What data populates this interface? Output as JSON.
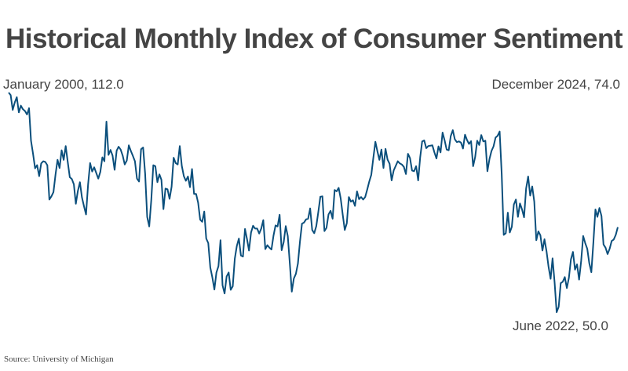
{
  "chart_data": {
    "type": "line",
    "title": "Historical Monthly Index of Consumer Sentiment",
    "source": "Source: University of Michigan",
    "x_start": "January 2000",
    "x_end": "December 2024",
    "frequency": "monthly",
    "grid": false,
    "line_color": "#0b4f7c",
    "annotations": {
      "start": "January 2000, 112.0",
      "end": "December 2024, 74.0",
      "min": "June 2022, 50.0"
    },
    "series": [
      {
        "values": [
          112.0,
          111.3,
          107.1,
          109.2,
          110.7,
          106.4,
          108.3,
          107.3,
          106.8,
          105.8,
          107.6,
          98.4,
          94.7,
          90.6,
          91.5,
          88.4,
          92.0,
          92.6,
          92.4,
          91.5,
          81.8,
          82.7,
          83.9,
          88.8,
          93.0,
          90.7,
          95.7,
          93.0,
          96.9,
          92.4,
          88.1,
          87.6,
          86.1,
          80.6,
          84.2,
          86.7,
          82.4,
          79.9,
          77.6,
          86.0,
          92.1,
          89.7,
          90.9,
          89.3,
          87.7,
          89.6,
          93.7,
          92.6,
          103.8,
          94.4,
          95.8,
          94.2,
          90.2,
          95.6,
          96.7,
          95.9,
          94.2,
          91.7,
          92.8,
          97.1,
          95.5,
          94.1,
          92.6,
          87.7,
          86.9,
          96.0,
          96.5,
          89.1,
          76.9,
          74.2,
          81.6,
          91.5,
          91.2,
          86.7,
          88.9,
          87.4,
          79.1,
          84.9,
          84.7,
          82.0,
          85.4,
          93.6,
          92.1,
          91.7,
          96.9,
          91.3,
          88.4,
          87.1,
          88.3,
          85.3,
          90.4,
          83.4,
          83.4,
          80.9,
          76.1,
          75.5,
          78.4,
          70.8,
          69.5,
          62.6,
          59.8,
          56.4,
          61.2,
          63.0,
          70.3,
          57.6,
          55.3,
          60.1,
          61.2,
          56.3,
          57.3,
          65.1,
          68.7,
          70.8,
          66.0,
          65.7,
          73.5,
          70.6,
          67.4,
          72.5,
          74.4,
          73.6,
          73.6,
          72.2,
          73.6,
          76.0,
          67.8,
          68.9,
          68.2,
          67.7,
          71.6,
          74.5,
          74.2,
          77.5,
          67.5,
          69.8,
          74.3,
          71.5,
          63.7,
          55.8,
          59.5,
          60.8,
          63.7,
          69.9,
          75.0,
          75.3,
          76.2,
          76.4,
          79.3,
          73.2,
          72.3,
          74.3,
          78.3,
          82.6,
          82.7,
          72.9,
          73.8,
          77.6,
          78.6,
          76.4,
          84.5,
          84.1,
          85.1,
          82.1,
          77.5,
          73.2,
          75.1,
          82.5,
          81.2,
          81.6,
          80.0,
          84.1,
          81.9,
          82.5,
          81.8,
          82.5,
          84.6,
          86.9,
          88.8,
          93.6,
          98.1,
          95.4,
          93.0,
          95.9,
          90.7,
          96.1,
          93.1,
          91.9,
          87.2,
          90.0,
          91.3,
          92.6,
          92.0,
          91.7,
          91.0,
          89.0,
          94.7,
          93.5,
          90.0,
          89.8,
          91.2,
          87.2,
          93.8,
          98.2,
          98.5,
          96.3,
          96.9,
          97.0,
          97.1,
          95.1,
          93.4,
          96.8,
          95.1,
          100.7,
          98.5,
          95.9,
          95.7,
          99.7,
          101.4,
          98.8,
          98.0,
          98.2,
          97.9,
          96.2,
          100.1,
          98.6,
          97.5,
          98.3,
          91.2,
          93.8,
          98.4,
          97.2,
          100.0,
          98.2,
          98.4,
          89.8,
          93.2,
          95.5,
          96.8,
          99.3,
          99.8,
          101.0,
          89.1,
          71.8,
          72.3,
          78.1,
          72.5,
          74.1,
          80.4,
          81.8,
          76.9,
          80.7,
          79.0,
          76.8,
          84.9,
          88.3,
          82.9,
          85.5,
          81.2,
          70.3,
          72.8,
          71.7,
          67.4,
          70.6,
          67.2,
          62.8,
          59.4,
          65.2,
          58.4,
          50.0,
          51.5,
          58.2,
          58.6,
          59.9,
          56.8,
          59.7,
          64.9,
          67.0,
          62.0,
          63.5,
          59.2,
          64.4,
          71.5,
          69.5,
          67.9,
          63.8,
          61.3,
          69.7,
          79.0,
          76.9,
          79.4,
          77.2,
          69.1,
          68.2,
          66.4,
          67.9,
          70.1,
          70.5,
          71.8,
          74.0
        ]
      }
    ]
  }
}
